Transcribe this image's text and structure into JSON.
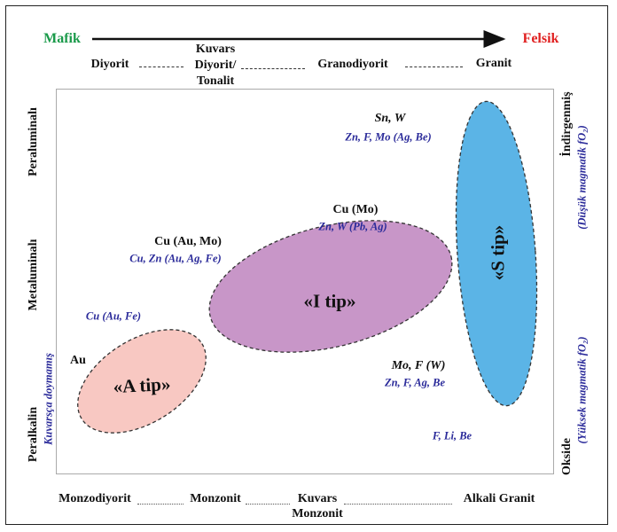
{
  "top_axis": {
    "left": "Mafik",
    "right": "Felsik",
    "left_color": "#1a9a4a",
    "right_color": "#e02020"
  },
  "rock_series_top": [
    "Diyorit",
    "Kuvars Diyorit/ Tonalit",
    "Granodiyorit",
    "Granit"
  ],
  "rock_series_top_lines": [
    "Kuvars",
    "Diyorit/",
    "Tonalit"
  ],
  "rock_series_bottom": [
    "Monzodiyorit",
    "Monzonit",
    "Kuvars Monzonit",
    "Alkali Granit"
  ],
  "rock_series_bottom_lines": [
    "Kuvars",
    "Monzonit"
  ],
  "left_axis": {
    "peraluminous": "Peraluminalı",
    "metaluminous": "Metaluminalı",
    "peralkaline": "Peralkalin",
    "quartz_unsat": "Kuvarsça doymamış"
  },
  "right_axis": {
    "reduced": "İndirgenmiş",
    "reduced_note": "(Düşük magmatik fO₂)",
    "oxidized": "Okside",
    "oxidized_note": "(Yüksek magmatik fO₂)"
  },
  "types": {
    "a": "«A tip»",
    "i": "«I tip»",
    "s": "«S tip»",
    "a_color": "#f8c8c2",
    "i_color": "#c896c8",
    "s_color": "#5bb4e6"
  },
  "labels": {
    "sn_w": "Sn, W",
    "sn_w_sub": "Zn, F, Mo (Ag, Be)",
    "cu_mo": "Cu (Mo)",
    "cu_mo_sub": "Zn, W (Pb, Ag)",
    "cu_au_mo": "Cu (Au, Mo)",
    "cu_au_mo_sub": "Cu, Zn (Au, Ag, Fe)",
    "cu_au_fe": "Cu (Au, Fe)",
    "au": "Au",
    "mo_f_w": "Mo, F (W)",
    "mo_f_w_sub": "Zn, F, Ag, Be",
    "f_li_be": "F, Li, Be"
  }
}
